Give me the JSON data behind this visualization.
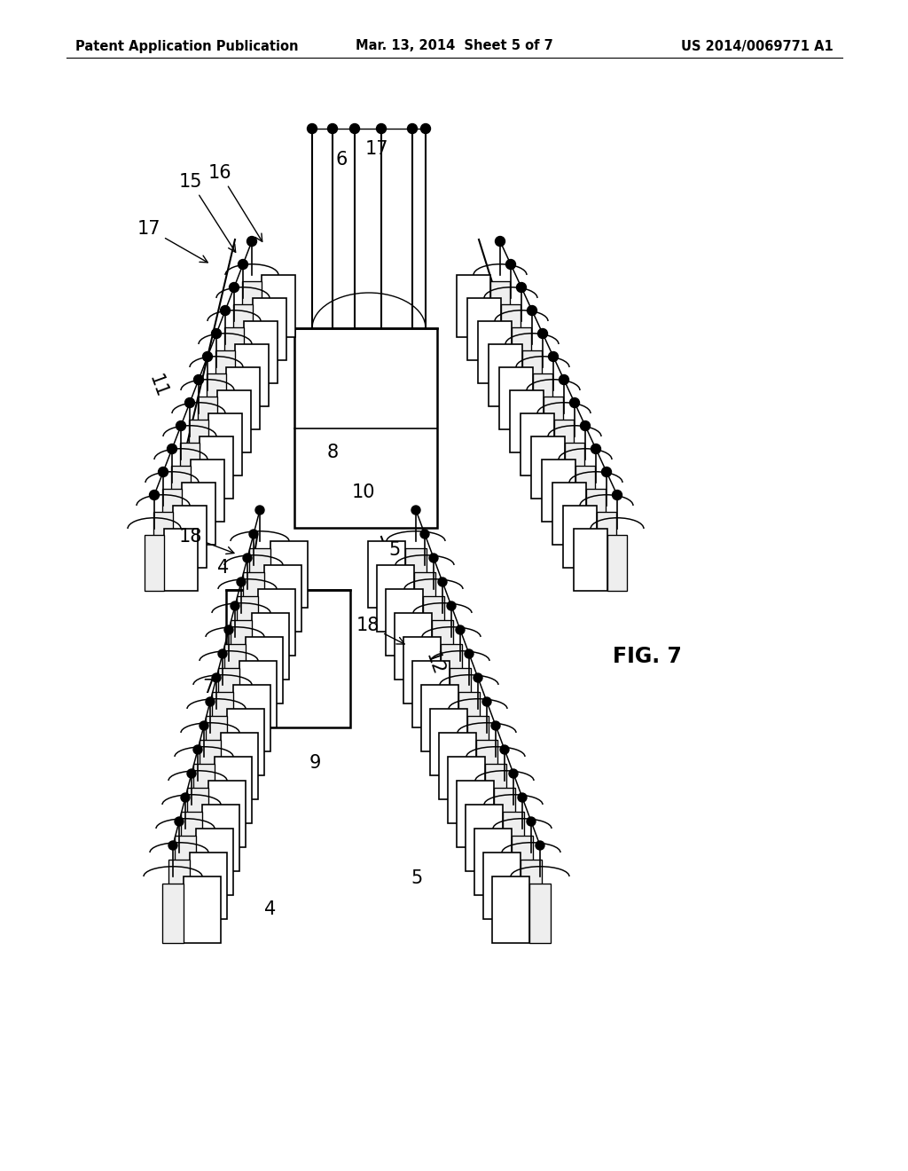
{
  "bg_color": "#ffffff",
  "line_color": "#000000",
  "header_left": "Patent Application Publication",
  "header_center": "Mar. 13, 2014  Sheet 5 of 7",
  "header_right": "US 2014/0069771 A1",
  "fig_label": "FIG. 7",
  "header_fontsize": 10.5,
  "fig_label_fontsize": 17,
  "label_fontsize": 15
}
